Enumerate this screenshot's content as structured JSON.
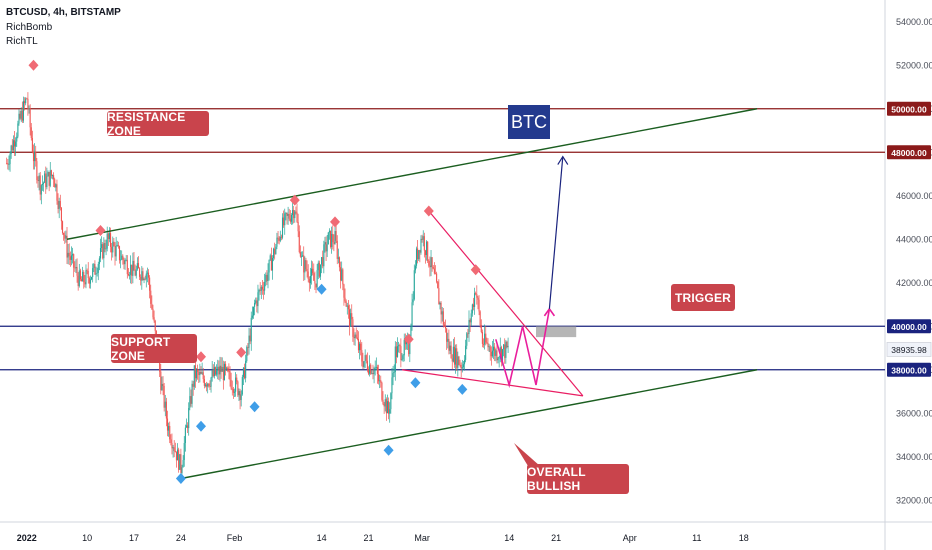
{
  "header": {
    "symbol": "BTCUSD, 4h, BITSTAMP",
    "indicators": [
      "RichBomb",
      "RichTL"
    ]
  },
  "annotations": {
    "resistance": "RESISTANCE ZONE",
    "support": "SUPPORT ZONE",
    "trigger": "TRIGGER",
    "overall": "OVERALL BULLISH",
    "logo": "BTC"
  },
  "colors": {
    "up": "#26a69a",
    "down": "#ef5350",
    "resistance_line": "#8b1a1a",
    "support_line": "#1a237e",
    "trend_green": "#1b5e20",
    "wedge_red": "#e91e63",
    "zigzag": "#e91e9c",
    "arrow": "#1a237e",
    "label_red": "#c9444c"
  },
  "chart_data": {
    "type": "candlestick",
    "symbol": "BTCUSD",
    "timeframe": "4h",
    "exchange": "BITSTAMP",
    "y_axis": {
      "range": [
        31000,
        55000
      ],
      "ticks": [
        32000,
        34000,
        36000,
        38000,
        40000,
        42000,
        44000,
        46000,
        48000,
        50000,
        52000,
        54000
      ],
      "labels": [
        "32000.00",
        "34000.00",
        "36000.00",
        "38000.00",
        "40000.00",
        "42000.00",
        "44000.00",
        "46000.00",
        "48000.00",
        "50000.00",
        "52000.00",
        "54000.00"
      ]
    },
    "x_axis": {
      "ticks": [
        "2022",
        "10",
        "17",
        "24",
        "Feb",
        "14",
        "21",
        "Mar",
        "14",
        "21",
        "Apr",
        "11",
        "18"
      ]
    },
    "current_price": 38935.98,
    "current_price_label": "38935.98",
    "levels": [
      {
        "name": "resistance-top",
        "price": 50000,
        "label": "50000.00"
      },
      {
        "name": "resistance-bottom",
        "price": 48000,
        "label": "48000.00"
      },
      {
        "name": "support-top",
        "price": 40000,
        "label": "40000.00"
      },
      {
        "name": "support-bottom",
        "price": 38000,
        "label": "38000.00"
      }
    ],
    "path_keypoints": [
      [
        "2021-12-29",
        47500
      ],
      [
        "2022-01-01",
        50500
      ],
      [
        "2022-01-02",
        47800
      ],
      [
        "2022-01-03",
        46500
      ],
      [
        "2022-01-05",
        47000
      ],
      [
        "2022-01-07",
        43500
      ],
      [
        "2022-01-09",
        42000
      ],
      [
        "2022-01-11",
        42500
      ],
      [
        "2022-01-13",
        44000
      ],
      [
        "2022-01-15",
        43200
      ],
      [
        "2022-01-17",
        42500
      ],
      [
        "2022-01-19",
        42500
      ],
      [
        "2022-01-21",
        37500
      ],
      [
        "2022-01-22",
        35500
      ],
      [
        "2022-01-24",
        33500
      ],
      [
        "2022-01-26",
        37800
      ],
      [
        "2022-01-28",
        37500
      ],
      [
        "2022-01-30",
        38000
      ],
      [
        "2022-02-02",
        37000
      ],
      [
        "2022-02-04",
        41000
      ],
      [
        "2022-02-06",
        42500
      ],
      [
        "2022-02-08",
        44500
      ],
      [
        "2022-02-10",
        45500
      ],
      [
        "2022-02-11",
        43000
      ],
      [
        "2022-02-13",
        42000
      ],
      [
        "2022-02-15",
        44000
      ],
      [
        "2022-02-16",
        44000
      ],
      [
        "2022-02-18",
        40500
      ],
      [
        "2022-02-20",
        38500
      ],
      [
        "2022-02-22",
        38000
      ],
      [
        "2022-02-24",
        36000
      ],
      [
        "2022-02-25",
        38800
      ],
      [
        "2022-02-27",
        39000
      ],
      [
        "2022-02-28",
        43000
      ],
      [
        "2022-03-01",
        44200
      ],
      [
        "2022-03-03",
        42000
      ],
      [
        "2022-03-05",
        39000
      ],
      [
        "2022-03-07",
        38200
      ],
      [
        "2022-03-09",
        41800
      ],
      [
        "2022-03-10",
        39300
      ],
      [
        "2022-03-12",
        38800
      ],
      [
        "2022-03-14",
        38935.98
      ]
    ],
    "pivot_highs": [
      {
        "date": "2022-01-02",
        "price": 52000
      },
      {
        "date": "2022-01-12",
        "price": 44400
      },
      {
        "date": "2022-01-27",
        "price": 38600
      },
      {
        "date": "2022-02-02",
        "price": 38800
      },
      {
        "date": "2022-02-10",
        "price": 45800
      },
      {
        "date": "2022-02-16",
        "price": 44800
      },
      {
        "date": "2022-02-27",
        "price": 39400
      },
      {
        "date": "2022-03-02",
        "price": 45300
      },
      {
        "date": "2022-03-09",
        "price": 42600
      }
    ],
    "pivot_lows": [
      {
        "date": "2022-01-24",
        "price": 33000
      },
      {
        "date": "2022-01-27",
        "price": 35400
      },
      {
        "date": "2022-02-04",
        "price": 36300
      },
      {
        "date": "2022-02-14",
        "price": 41700
      },
      {
        "date": "2022-02-24",
        "price": 34300
      },
      {
        "date": "2022-02-28",
        "price": 37400
      },
      {
        "date": "2022-03-07",
        "price": 37100
      }
    ],
    "drawings": {
      "upper_trendline": [
        [
          "2022-01-07",
          44000
        ],
        [
          "2022-04-20",
          50000
        ]
      ],
      "lower_trendline": [
        [
          "2022-01-24",
          33000
        ],
        [
          "2022-04-20",
          38000
        ]
      ],
      "wedge_upper": [
        [
          "2022-03-02",
          45300
        ],
        [
          "2022-03-25",
          36800
        ]
      ],
      "wedge_lower": [
        [
          "2022-02-26",
          38000
        ],
        [
          "2022-03-25",
          36800
        ]
      ],
      "zigzag": [
        [
          "2022-03-12",
          39400
        ],
        [
          "2022-03-14",
          37300
        ],
        [
          "2022-03-16",
          40000
        ],
        [
          "2022-03-18",
          37300
        ],
        [
          "2022-03-20",
          40800
        ]
      ],
      "target_arrow": [
        [
          "2022-03-20",
          40800
        ],
        [
          "2022-03-22",
          47800
        ]
      ],
      "trigger_box": {
        "from": "2022-03-18",
        "to": "2022-03-24",
        "top": 40000,
        "bottom": 39500
      }
    }
  }
}
